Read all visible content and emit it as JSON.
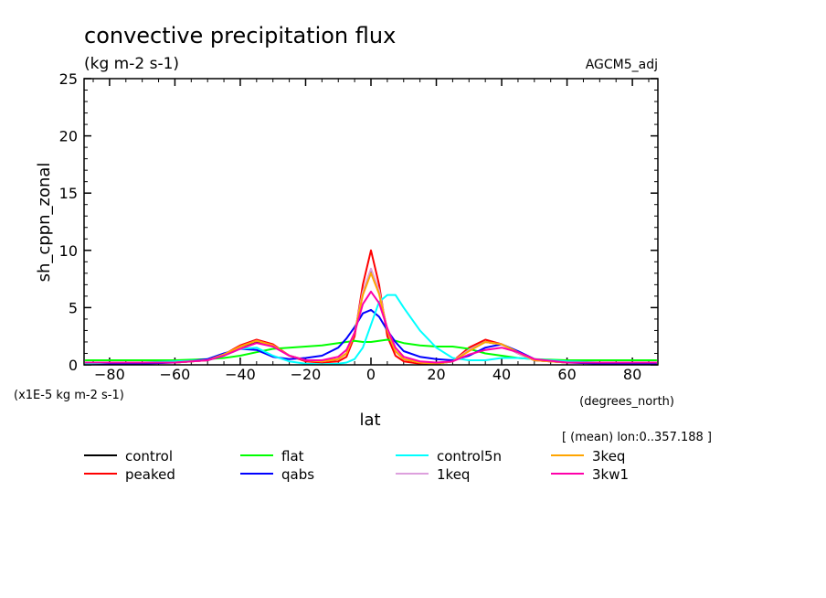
{
  "chart_data": {
    "type": "line",
    "title": "convective precipitation flux",
    "units": "(kg m-2 s-1)",
    "dataset": "AGCM5_adj",
    "xlabel": "lat",
    "xunits": "(degrees_north)",
    "ylabel": "sh_cppn_zonal",
    "yscale_note": "(x1E-5 kg m-2 s-1)",
    "subset_note": "[ (mean) lon:0..357.188 ]",
    "xlim": [
      -87.8,
      87.8
    ],
    "ylim": [
      0,
      25
    ],
    "xticks": [
      -80,
      -60,
      -40,
      -20,
      0,
      20,
      40,
      60,
      80
    ],
    "yticks": [
      0,
      5,
      10,
      15,
      20,
      25
    ],
    "legend_placement": "bottom",
    "x": [
      -87.5,
      -80,
      -70,
      -60,
      -50,
      -45,
      -40,
      -35,
      -30,
      -25,
      -20,
      -15,
      -10,
      -7.5,
      -5,
      -2.5,
      0,
      2.5,
      5,
      7.5,
      10,
      15,
      20,
      25,
      30,
      35,
      40,
      45,
      50,
      60,
      70,
      80,
      87.5
    ],
    "series": [
      {
        "name": "control",
        "color": "#000000",
        "values": [
          0.2,
          0.2,
          0.2,
          0.2,
          0.4,
          0.9,
          1.6,
          2.0,
          1.7,
          0.8,
          0.4,
          0.3,
          0.5,
          1.0,
          2.8,
          6.2,
          8.2,
          6.4,
          3.0,
          1.2,
          0.5,
          0.2,
          0.1,
          0.3,
          1.3,
          2.0,
          1.8,
          1.0,
          0.4,
          0.2,
          0.2,
          0.2,
          0.2
        ]
      },
      {
        "name": "peaked",
        "color": "#ff0000",
        "values": [
          0.2,
          0.2,
          0.2,
          0.2,
          0.4,
          0.9,
          1.7,
          2.2,
          1.8,
          0.8,
          0.3,
          0.2,
          0.3,
          0.7,
          2.5,
          7.0,
          10.0,
          7.0,
          2.5,
          0.8,
          0.3,
          0.1,
          0.1,
          0.3,
          1.5,
          2.2,
          1.8,
          1.0,
          0.4,
          0.2,
          0.2,
          0.2,
          0.2
        ]
      },
      {
        "name": "flat",
        "color": "#00ff00",
        "values": [
          0.4,
          0.4,
          0.4,
          0.4,
          0.5,
          0.6,
          0.8,
          1.1,
          1.4,
          1.5,
          1.6,
          1.7,
          1.9,
          2.0,
          2.1,
          2.0,
          2.0,
          2.1,
          2.2,
          2.1,
          1.9,
          1.7,
          1.6,
          1.6,
          1.4,
          1.0,
          0.8,
          0.6,
          0.5,
          0.4,
          0.4,
          0.4,
          0.4
        ]
      },
      {
        "name": "qabs",
        "color": "#0000ff",
        "values": [
          0.1,
          0.1,
          0.1,
          0.2,
          0.5,
          1.0,
          1.4,
          1.3,
          0.7,
          0.5,
          0.6,
          0.8,
          1.5,
          2.3,
          3.3,
          4.5,
          4.8,
          4.2,
          3.0,
          2.0,
          1.2,
          0.7,
          0.5,
          0.4,
          0.8,
          1.5,
          1.8,
          1.2,
          0.5,
          0.2,
          0.1,
          0.1,
          0.1
        ]
      },
      {
        "name": "control5n",
        "color": "#00ffff",
        "values": [
          0.1,
          0.2,
          0.2,
          0.3,
          0.4,
          0.8,
          1.4,
          1.5,
          0.8,
          0.3,
          0.1,
          0.05,
          0.1,
          0.2,
          0.5,
          1.5,
          3.5,
          5.5,
          6.1,
          6.1,
          5.0,
          3.0,
          1.5,
          0.6,
          0.4,
          0.4,
          0.6,
          0.6,
          0.5,
          0.3,
          0.2,
          0.2,
          0.2
        ]
      },
      {
        "name": "1keq",
        "color": "#dda0dd",
        "values": [
          0.2,
          0.2,
          0.2,
          0.2,
          0.4,
          0.9,
          1.6,
          2.1,
          1.7,
          0.8,
          0.4,
          0.3,
          0.5,
          1.0,
          2.8,
          6.4,
          8.4,
          6.5,
          3.0,
          1.2,
          0.5,
          0.2,
          0.1,
          0.3,
          1.3,
          2.0,
          1.8,
          1.0,
          0.4,
          0.2,
          0.2,
          0.2,
          0.2
        ]
      },
      {
        "name": "3keq",
        "color": "#ffa500",
        "values": [
          0.2,
          0.2,
          0.2,
          0.2,
          0.4,
          0.9,
          1.6,
          2.1,
          1.7,
          0.8,
          0.4,
          0.3,
          0.5,
          1.0,
          2.8,
          6.1,
          8.0,
          6.2,
          3.0,
          1.2,
          0.5,
          0.2,
          0.1,
          0.3,
          1.2,
          2.0,
          1.8,
          1.1,
          0.4,
          0.2,
          0.2,
          0.2,
          0.2
        ]
      },
      {
        "name": "3kw1",
        "color": "#ff00aa",
        "values": [
          0.2,
          0.2,
          0.2,
          0.2,
          0.4,
          0.8,
          1.4,
          1.9,
          1.6,
          0.8,
          0.4,
          0.4,
          0.7,
          1.3,
          2.8,
          5.3,
          6.4,
          5.4,
          3.2,
          1.5,
          0.7,
          0.3,
          0.2,
          0.3,
          0.9,
          1.3,
          1.5,
          1.1,
          0.5,
          0.2,
          0.2,
          0.2,
          0.2
        ]
      }
    ]
  }
}
